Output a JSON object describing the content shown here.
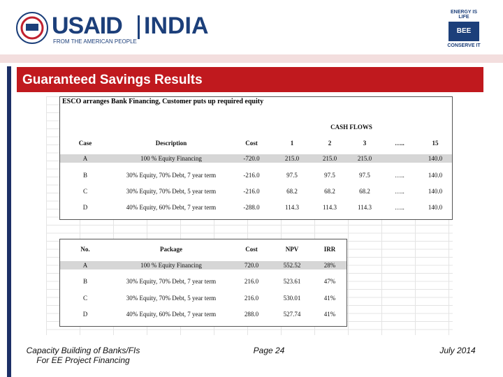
{
  "header": {
    "logo_left": {
      "brand": "USAID",
      "country": "INDIA",
      "tagline": "FROM THE AMERICAN PEOPLE"
    },
    "logo_right": {
      "top": "ENERGY IS LIFE",
      "middle": "BEE",
      "bottom": "CONSERVE IT"
    }
  },
  "title": "Guaranteed Savings Results",
  "table1": {
    "caption": "ESCO arranges Bank Financing, Customer puts up required equity",
    "group_header": "CASH FLOWS",
    "columns": [
      "Case",
      "Description",
      "Cost",
      "1",
      "2",
      "3",
      "…..",
      "15"
    ],
    "rows": [
      [
        "A",
        "100 % Equity Financing",
        "-720.0",
        "215.0",
        "215.0",
        "215.0",
        null,
        "140.0"
      ],
      [
        "B",
        "30% Equity, 70% Debt, 7 year term",
        "-216.0",
        "97.5",
        "97.5",
        "97.5",
        "…..",
        "140.0"
      ],
      [
        "C",
        "30% Equity, 70% Debt, 5 year term",
        "-216.0",
        "68.2",
        "68.2",
        "68.2",
        "…..",
        "140.0"
      ],
      [
        "D",
        "40% Equity, 60% Debt, 7 year term",
        "-288.0",
        "114.3",
        "114.3",
        "114.3",
        "…..",
        "140.0"
      ]
    ]
  },
  "table2": {
    "columns": [
      "No.",
      "Package",
      "Cost",
      "NPV",
      "IRR"
    ],
    "rows": [
      [
        "A",
        "100 % Equity Financing",
        "720.0",
        "552.52",
        "28%"
      ],
      [
        "B",
        "30% Equity, 70% Debt, 7 year term",
        "216.0",
        "523.61",
        "47%"
      ],
      [
        "C",
        "30% Equity, 70% Debt, 5 year term",
        "216.0",
        "530.01",
        "41%"
      ],
      [
        "D",
        "40% Equity, 60% Debt, 7 year term",
        "288.0",
        "527.74",
        "41%"
      ]
    ]
  },
  "footer": {
    "left": [
      "Capacity Building of Banks/FIs",
      "For EE Project Financing"
    ],
    "center": "Page 24",
    "right": "July 2014"
  }
}
